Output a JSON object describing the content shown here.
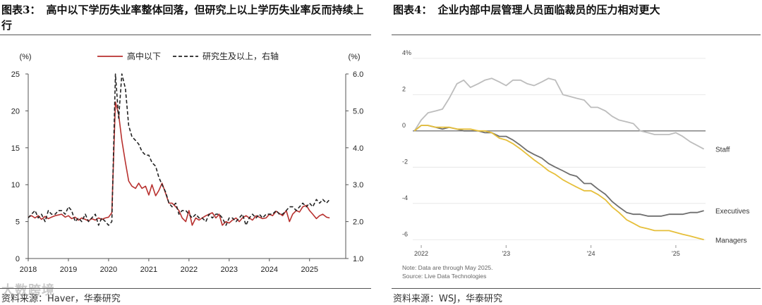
{
  "left": {
    "title_num": "图表3：",
    "title_text": "高中以下学历失业率整体回落，但研究上以上学历失业率反而持续上行",
    "source": "资料来源：Haver，华泰研究",
    "watermark": "大数跨境",
    "chart_data": {
      "type": "line",
      "left_unit": "(%)",
      "right_unit": "(%)",
      "x_ticks": [
        "2018",
        "2019",
        "2020",
        "2021",
        "2022",
        "2023",
        "2024",
        "2025"
      ],
      "xlim": [
        2018.0,
        2025.9
      ],
      "ylim_left": [
        0,
        25
      ],
      "y_ticks_left": [
        "0",
        "5",
        "10",
        "15",
        "20",
        "25"
      ],
      "ylim_right": [
        1.0,
        6.0
      ],
      "y_ticks_right": [
        "1.0",
        "2.0",
        "3.0",
        "4.0",
        "5.0",
        "6.0"
      ],
      "grid": false,
      "legend_position": "top",
      "series": [
        {
          "name": "高中以下",
          "axis": "left",
          "color": "#b8312f",
          "dash": "solid",
          "x": [
            2018.0,
            2018.08,
            2018.17,
            2018.25,
            2018.33,
            2018.42,
            2018.5,
            2018.58,
            2018.67,
            2018.75,
            2018.83,
            2018.92,
            2019.0,
            2019.08,
            2019.17,
            2019.25,
            2019.33,
            2019.42,
            2019.5,
            2019.58,
            2019.67,
            2019.75,
            2019.83,
            2019.92,
            2020.0,
            2020.08,
            2020.17,
            2020.25,
            2020.33,
            2020.42,
            2020.5,
            2020.58,
            2020.67,
            2020.75,
            2020.83,
            2020.92,
            2021.0,
            2021.08,
            2021.17,
            2021.25,
            2021.33,
            2021.42,
            2021.5,
            2021.58,
            2021.67,
            2021.75,
            2021.83,
            2021.92,
            2022.0,
            2022.08,
            2022.17,
            2022.25,
            2022.33,
            2022.42,
            2022.5,
            2022.58,
            2022.67,
            2022.75,
            2022.83,
            2022.92,
            2023.0,
            2023.08,
            2023.17,
            2023.25,
            2023.33,
            2023.42,
            2023.5,
            2023.58,
            2023.67,
            2023.75,
            2023.83,
            2023.92,
            2024.0,
            2024.08,
            2024.17,
            2024.25,
            2024.33,
            2024.42,
            2024.5,
            2024.58,
            2024.67,
            2024.75,
            2024.83,
            2024.92,
            2025.0,
            2025.08,
            2025.17,
            2025.25,
            2025.33,
            2025.42,
            2025.5
          ],
          "values": [
            5.6,
            5.8,
            5.5,
            5.8,
            5.3,
            5.7,
            5.4,
            5.6,
            5.8,
            5.9,
            6.0,
            5.6,
            5.8,
            5.4,
            5.6,
            5.2,
            5.5,
            5.3,
            5.1,
            5.4,
            5.2,
            5.5,
            5.3,
            5.5,
            5.6,
            6.2,
            21.2,
            19.5,
            16.0,
            13.0,
            10.5,
            9.8,
            9.5,
            10.2,
            9.5,
            9.8,
            8.6,
            10.0,
            8.5,
            9.2,
            10.2,
            8.8,
            7.5,
            7.5,
            7.0,
            6.5,
            5.5,
            5.0,
            6.5,
            4.5,
            5.5,
            5.2,
            5.5,
            5.8,
            6.0,
            6.2,
            5.5,
            6.0,
            4.5,
            5.0,
            4.8,
            5.2,
            5.5,
            5.0,
            5.5,
            5.8,
            5.5,
            5.2,
            5.8,
            5.6,
            5.4,
            5.5,
            6.0,
            5.8,
            6.4,
            6.1,
            5.8,
            6.5,
            5.0,
            6.0,
            6.5,
            6.3,
            7.0,
            7.2,
            6.5,
            6.0,
            5.4,
            5.8,
            6.0,
            5.6,
            5.5
          ]
        },
        {
          "name": "研究生及以上，右轴",
          "axis": "right",
          "color": "#222222",
          "dash": "dashed",
          "x": [
            2018.0,
            2018.08,
            2018.17,
            2018.25,
            2018.33,
            2018.42,
            2018.5,
            2018.58,
            2018.67,
            2018.75,
            2018.83,
            2018.92,
            2019.0,
            2019.08,
            2019.17,
            2019.25,
            2019.33,
            2019.42,
            2019.5,
            2019.58,
            2019.67,
            2019.75,
            2019.83,
            2019.92,
            2020.0,
            2020.08,
            2020.17,
            2020.25,
            2020.33,
            2020.42,
            2020.5,
            2020.58,
            2020.67,
            2020.75,
            2020.83,
            2020.92,
            2021.0,
            2021.08,
            2021.17,
            2021.25,
            2021.33,
            2021.42,
            2021.5,
            2021.58,
            2021.67,
            2021.75,
            2021.83,
            2021.92,
            2022.0,
            2022.08,
            2022.17,
            2022.25,
            2022.33,
            2022.42,
            2022.5,
            2022.58,
            2022.67,
            2022.75,
            2022.83,
            2022.92,
            2023.0,
            2023.08,
            2023.17,
            2023.25,
            2023.33,
            2023.42,
            2023.5,
            2023.58,
            2023.67,
            2023.75,
            2023.83,
            2023.92,
            2024.0,
            2024.08,
            2024.17,
            2024.25,
            2024.33,
            2024.42,
            2024.5,
            2024.58,
            2024.67,
            2024.75,
            2024.83,
            2024.92,
            2025.0,
            2025.08,
            2025.17,
            2025.25,
            2025.33,
            2025.42,
            2025.5
          ],
          "values": [
            2.1,
            2.2,
            2.3,
            2.1,
            2.2,
            2.0,
            2.3,
            2.2,
            2.2,
            2.3,
            2.3,
            2.2,
            2.4,
            2.3,
            2.0,
            2.1,
            2.0,
            2.2,
            2.0,
            2.1,
            2.2,
            1.9,
            2.1,
            2.0,
            1.9,
            2.0,
            6.0,
            4.8,
            6.0,
            5.6,
            4.6,
            4.3,
            4.2,
            4.1,
            3.9,
            3.8,
            3.8,
            3.6,
            3.5,
            3.2,
            3.0,
            2.8,
            2.5,
            2.4,
            2.5,
            2.2,
            2.3,
            2.3,
            2.2,
            2.1,
            2.2,
            2.1,
            2.1,
            2.0,
            2.2,
            2.1,
            2.2,
            2.2,
            2.1,
            1.9,
            2.1,
            2.1,
            2.0,
            2.1,
            2.2,
            1.9,
            2.1,
            2.2,
            2.1,
            2.2,
            2.1,
            2.2,
            2.2,
            2.2,
            2.3,
            2.2,
            2.2,
            2.3,
            2.4,
            2.4,
            2.3,
            2.4,
            2.5,
            2.4,
            2.5,
            2.4,
            2.6,
            2.5,
            2.6,
            2.5,
            2.6
          ]
        }
      ]
    }
  },
  "right": {
    "title_num": "图表4：",
    "title_text": "企业内部中层管理人员面临裁员的压力相对更大",
    "source": "资料来源：WSJ，华泰研究",
    "note_line1": "Note: Data are through May 2025.",
    "note_line2": "Source: Live Data Technologies",
    "chart_data": {
      "type": "line",
      "x_ticks": [
        "2022",
        "'23",
        "'24",
        "'25"
      ],
      "x_tick_values": [
        2022.0,
        2023.0,
        2024.0,
        2025.0
      ],
      "xlim": [
        2021.9,
        2025.35
      ],
      "ylim": [
        -6.3,
        4.5
      ],
      "y_ticks": [
        "4%",
        "2",
        "0",
        "-2",
        "-4",
        "-6"
      ],
      "y_tick_values": [
        4,
        2,
        0,
        -2,
        -4,
        -6
      ],
      "grid": true,
      "legend_position": "right (inline labels)",
      "series": [
        {
          "name": "Staff",
          "color": "#bdbdbd",
          "x": [
            2021.92,
            2022.0,
            2022.08,
            2022.17,
            2022.25,
            2022.33,
            2022.42,
            2022.5,
            2022.58,
            2022.67,
            2022.75,
            2022.83,
            2022.92,
            2023.0,
            2023.08,
            2023.17,
            2023.25,
            2023.33,
            2023.42,
            2023.5,
            2023.58,
            2023.67,
            2023.75,
            2023.83,
            2023.92,
            2024.0,
            2024.08,
            2024.17,
            2024.25,
            2024.33,
            2024.42,
            2024.5,
            2024.58,
            2024.67,
            2024.75,
            2024.83,
            2024.92,
            2025.0,
            2025.08,
            2025.17,
            2025.25,
            2025.33
          ],
          "values": [
            0.0,
            0.6,
            1.0,
            1.1,
            1.2,
            1.8,
            2.6,
            2.8,
            2.4,
            2.6,
            2.8,
            2.9,
            2.7,
            2.5,
            2.8,
            2.8,
            2.6,
            2.5,
            2.7,
            2.9,
            2.8,
            2.0,
            1.9,
            1.8,
            1.7,
            1.3,
            1.3,
            1.1,
            0.8,
            0.6,
            0.5,
            0.4,
            0.0,
            -0.1,
            -0.2,
            -0.2,
            -0.2,
            -0.1,
            -0.3,
            -0.6,
            -0.8,
            -1.0
          ]
        },
        {
          "name": "Executives",
          "color": "#6e6e6e",
          "x": [
            2021.92,
            2022.0,
            2022.08,
            2022.17,
            2022.25,
            2022.33,
            2022.42,
            2022.5,
            2022.58,
            2022.67,
            2022.75,
            2022.83,
            2022.92,
            2023.0,
            2023.08,
            2023.17,
            2023.25,
            2023.33,
            2023.42,
            2023.5,
            2023.58,
            2023.67,
            2023.75,
            2023.83,
            2023.92,
            2024.0,
            2024.08,
            2024.17,
            2024.25,
            2024.33,
            2024.42,
            2024.5,
            2024.58,
            2024.67,
            2024.75,
            2024.83,
            2024.92,
            2025.0,
            2025.08,
            2025.17,
            2025.25,
            2025.33
          ],
          "values": [
            0.0,
            0.3,
            0.3,
            0.2,
            0.1,
            0.2,
            0.1,
            0.0,
            0.0,
            0.0,
            -0.1,
            -0.1,
            -0.3,
            -0.3,
            -0.5,
            -0.8,
            -1.1,
            -1.3,
            -1.5,
            -1.8,
            -2.0,
            -2.2,
            -2.4,
            -2.5,
            -2.9,
            -2.9,
            -3.2,
            -3.5,
            -3.9,
            -4.2,
            -4.5,
            -4.6,
            -4.6,
            -4.7,
            -4.7,
            -4.7,
            -4.6,
            -4.6,
            -4.6,
            -4.5,
            -4.5,
            -4.4
          ]
        },
        {
          "name": "Managers",
          "color": "#e6bf3a",
          "x": [
            2021.92,
            2022.0,
            2022.08,
            2022.17,
            2022.25,
            2022.33,
            2022.42,
            2022.5,
            2022.58,
            2022.67,
            2022.75,
            2022.83,
            2022.92,
            2023.0,
            2023.08,
            2023.17,
            2023.25,
            2023.33,
            2023.42,
            2023.5,
            2023.58,
            2023.67,
            2023.75,
            2023.83,
            2023.92,
            2024.0,
            2024.08,
            2024.17,
            2024.25,
            2024.33,
            2024.42,
            2024.5,
            2024.58,
            2024.67,
            2024.75,
            2024.83,
            2024.92,
            2025.0,
            2025.08,
            2025.17,
            2025.25,
            2025.33
          ],
          "values": [
            0.0,
            0.3,
            0.3,
            0.2,
            0.2,
            0.2,
            0.1,
            0.1,
            0.1,
            0.0,
            0.0,
            -0.1,
            -0.4,
            -0.5,
            -0.7,
            -1.0,
            -1.3,
            -1.6,
            -1.9,
            -2.2,
            -2.4,
            -2.7,
            -2.9,
            -3.1,
            -3.3,
            -3.3,
            -3.5,
            -3.8,
            -4.2,
            -4.5,
            -4.9,
            -5.1,
            -5.3,
            -5.4,
            -5.5,
            -5.5,
            -5.5,
            -5.6,
            -5.7,
            -5.8,
            -5.9,
            -6.0
          ]
        }
      ]
    }
  }
}
